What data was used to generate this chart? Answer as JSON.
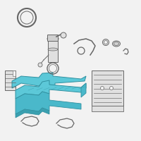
{
  "bg_color": "#f2f2f2",
  "tank_fill": "#5cc8d8",
  "tank_fill_dark": "#4ab8ca",
  "tank_fill_side": "#3aa0b0",
  "tank_edge": "#3090a0",
  "part_edge": "#666666",
  "part_fill": "#e0e0e0",
  "part_fill2": "#d0d0d0",
  "white": "#ffffff"
}
